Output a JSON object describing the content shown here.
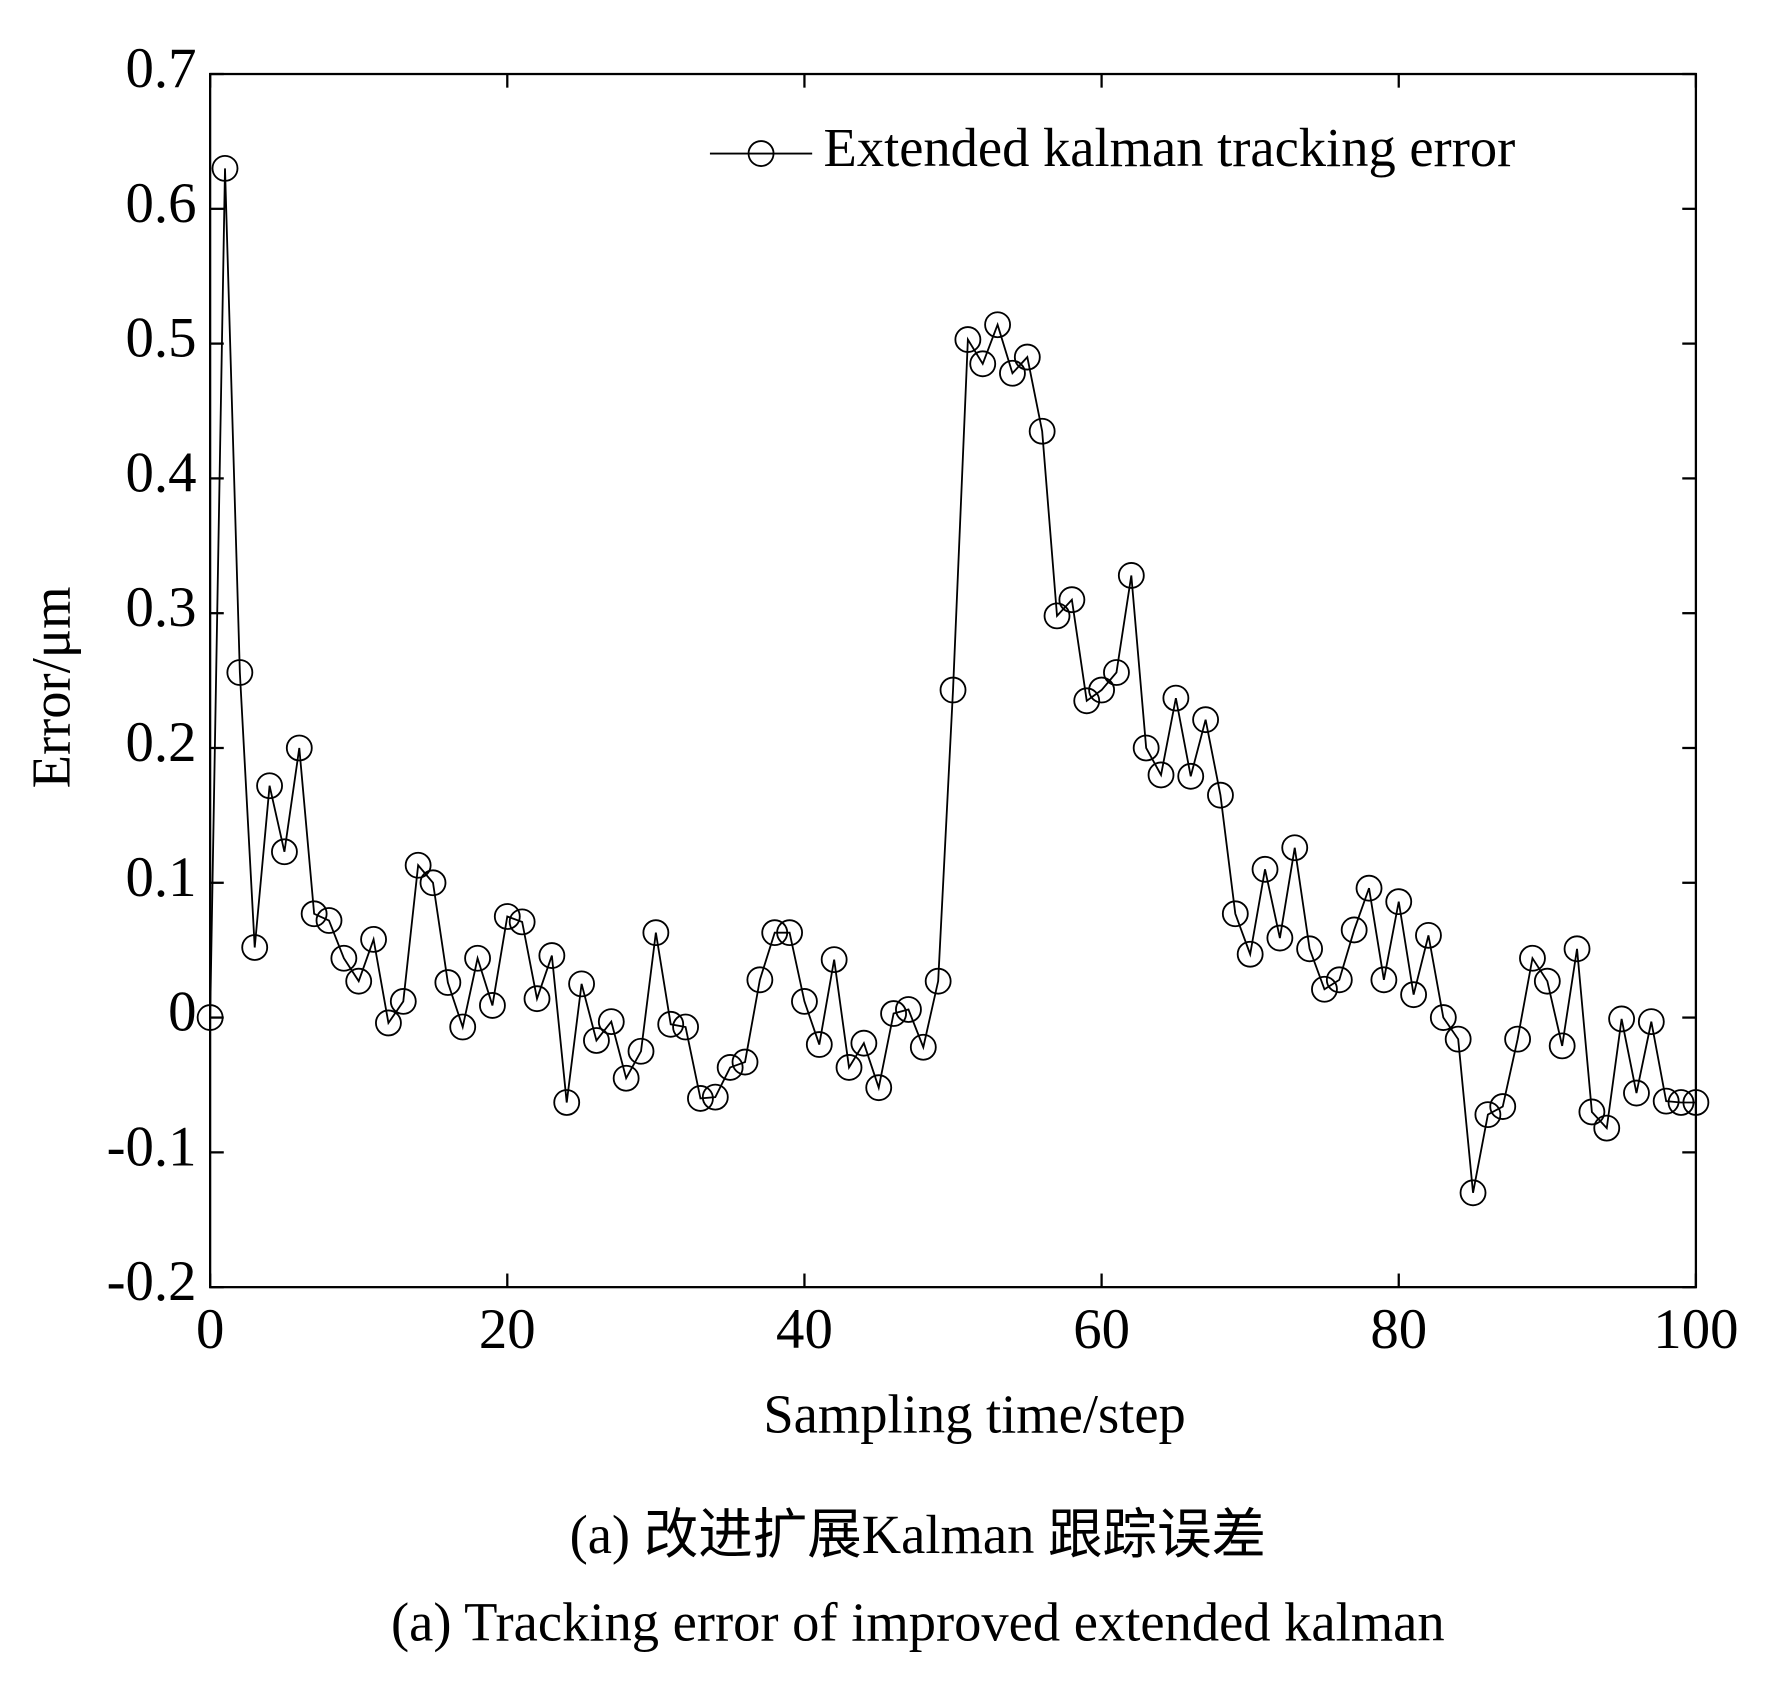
{
  "chart_data": {
    "type": "line",
    "xlabel": "Sampling time/step",
    "ylabel": "Error/μm",
    "captions": [
      "(a) 改进扩展Kalman 跟踪误差",
      "(a) Tracking error of improved extended kalman"
    ],
    "x": [
      0,
      1,
      2,
      3,
      4,
      5,
      6,
      7,
      8,
      9,
      10,
      11,
      12,
      13,
      14,
      15,
      16,
      17,
      18,
      19,
      20,
      21,
      22,
      23,
      24,
      25,
      26,
      27,
      28,
      29,
      30,
      31,
      32,
      33,
      34,
      35,
      36,
      37,
      38,
      39,
      40,
      41,
      42,
      43,
      44,
      45,
      46,
      47,
      48,
      49,
      50,
      51,
      52,
      53,
      54,
      55,
      56,
      57,
      58,
      59,
      60,
      61,
      62,
      63,
      64,
      65,
      66,
      67,
      68,
      69,
      70,
      71,
      72,
      73,
      74,
      75,
      76,
      77,
      78,
      79,
      80,
      81,
      82,
      83,
      84,
      85,
      86,
      87,
      88,
      89,
      90,
      91,
      92,
      93,
      94,
      95,
      96,
      97,
      98,
      99,
      100
    ],
    "series": [
      {
        "name": "Extended kalman tracking error",
        "color": "#000000",
        "marker": "circle",
        "values": [
          0,
          0.63,
          0.256,
          0.052,
          0.172,
          0.123,
          0.2,
          0.077,
          0.072,
          0.044,
          0.027,
          0.058,
          -0.004,
          0.012,
          0.113,
          0.1,
          0.026,
          -0.007,
          0.044,
          0.009,
          0.075,
          0.071,
          0.014,
          0.046,
          -0.063,
          0.025,
          -0.017,
          -0.003,
          -0.045,
          -0.025,
          0.063,
          -0.005,
          -0.007,
          -0.06,
          -0.059,
          -0.037,
          -0.033,
          0.028,
          0.063,
          0.063,
          0.012,
          -0.02,
          0.043,
          -0.037,
          -0.019,
          -0.052,
          0.003,
          0.006,
          -0.022,
          0.027,
          0.243,
          0.503,
          0.485,
          0.514,
          0.478,
          0.49,
          0.435,
          0.298,
          0.31,
          0.235,
          0.243,
          0.256,
          0.328,
          0.2,
          0.18,
          0.237,
          0.179,
          0.221,
          0.165,
          0.077,
          0.047,
          0.11,
          0.059,
          0.126,
          0.051,
          0.021,
          0.028,
          0.065,
          0.096,
          0.028,
          0.086,
          0.017,
          0.061,
          0,
          -0.016,
          -0.13,
          -0.072,
          -0.066,
          -0.016,
          0.044,
          0.027,
          -0.021,
          0.051,
          -0.07,
          -0.082,
          -0.001,
          -0.056,
          -0.003,
          -0.062,
          -0.063,
          -0.063
        ]
      }
    ],
    "xlim": [
      0,
      100
    ],
    "xticks": [
      0,
      20,
      40,
      60,
      80,
      100
    ],
    "ylim": [
      -0.2,
      0.7
    ],
    "yticks": [
      -0.2,
      -0.1,
      0,
      0.1,
      0.2,
      0.3,
      0.4,
      0.5,
      0.6,
      0.7
    ],
    "legend": "upper right"
  }
}
